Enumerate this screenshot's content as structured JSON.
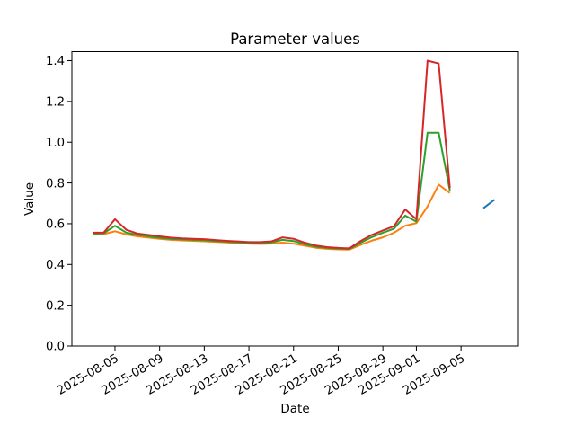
{
  "chart_data": {
    "type": "line",
    "title": "Parameter values",
    "xlabel": "Date",
    "ylabel": "Value",
    "grid": false,
    "legend": "none",
    "background_color": "#ffffff",
    "spine_color": "#000000",
    "x_epoch": "2025-08-01",
    "xlim_days": [
      0.14,
      40.14
    ],
    "ylim": [
      0,
      1.4442
    ],
    "x_tick_labels": [
      "2025-08-05",
      "2025-08-09",
      "2025-08-13",
      "2025-08-17",
      "2025-08-21",
      "2025-08-25",
      "2025-08-29",
      "2025-09-01",
      "2025-09-05"
    ],
    "y_tick_labels": [
      "0.0",
      "0.2",
      "0.4",
      "0.6",
      "0.8",
      "1.0",
      "1.2",
      "1.4"
    ],
    "dates": [
      "2025-08-03",
      "2025-08-04",
      "2025-08-05",
      "2025-08-06",
      "2025-08-07",
      "2025-08-08",
      "2025-08-09",
      "2025-08-10",
      "2025-08-11",
      "2025-08-12",
      "2025-08-13",
      "2025-08-14",
      "2025-08-15",
      "2025-08-16",
      "2025-08-17",
      "2025-08-18",
      "2025-08-19",
      "2025-08-20",
      "2025-08-21",
      "2025-08-22",
      "2025-08-23",
      "2025-08-24",
      "2025-08-25",
      "2025-08-26",
      "2025-08-27",
      "2025-08-28",
      "2025-08-29",
      "2025-08-30",
      "2025-08-31",
      "2025-09-01",
      "2025-09-02",
      "2025-09-03",
      "2025-09-04"
    ],
    "series": [
      {
        "name": "series-1-blue",
        "color": "#1f77b4",
        "dates": [
          "2025-09-07",
          "2025-09-08"
        ],
        "values": [
          0.676,
          0.718
        ]
      },
      {
        "name": "series-2-orange",
        "color": "#ff7f0e",
        "values": [
          0.548,
          0.549,
          0.563,
          0.548,
          0.538,
          0.532,
          0.526,
          0.521,
          0.518,
          0.516,
          0.514,
          0.511,
          0.508,
          0.505,
          0.502,
          0.501,
          0.502,
          0.507,
          0.502,
          0.492,
          0.482,
          0.477,
          0.474,
          0.473,
          0.496,
          0.517,
          0.533,
          0.556,
          0.59,
          0.603,
          0.685,
          0.792,
          0.751
        ]
      },
      {
        "name": "series-3-green",
        "color": "#2ca02c",
        "values": [
          0.552,
          0.553,
          0.59,
          0.557,
          0.545,
          0.538,
          0.531,
          0.526,
          0.523,
          0.521,
          0.519,
          0.515,
          0.512,
          0.509,
          0.506,
          0.506,
          0.508,
          0.521,
          0.515,
          0.499,
          0.487,
          0.481,
          0.478,
          0.476,
          0.506,
          0.534,
          0.556,
          0.576,
          0.64,
          0.61,
          1.046,
          1.046,
          0.763
        ]
      },
      {
        "name": "series-4-red",
        "color": "#d62728",
        "values": [
          0.556,
          0.557,
          0.622,
          0.571,
          0.552,
          0.545,
          0.538,
          0.532,
          0.528,
          0.526,
          0.524,
          0.52,
          0.516,
          0.513,
          0.51,
          0.51,
          0.513,
          0.533,
          0.526,
          0.507,
          0.493,
          0.485,
          0.481,
          0.479,
          0.515,
          0.545,
          0.567,
          0.588,
          0.67,
          0.622,
          1.4,
          1.386,
          0.775
        ]
      }
    ]
  }
}
